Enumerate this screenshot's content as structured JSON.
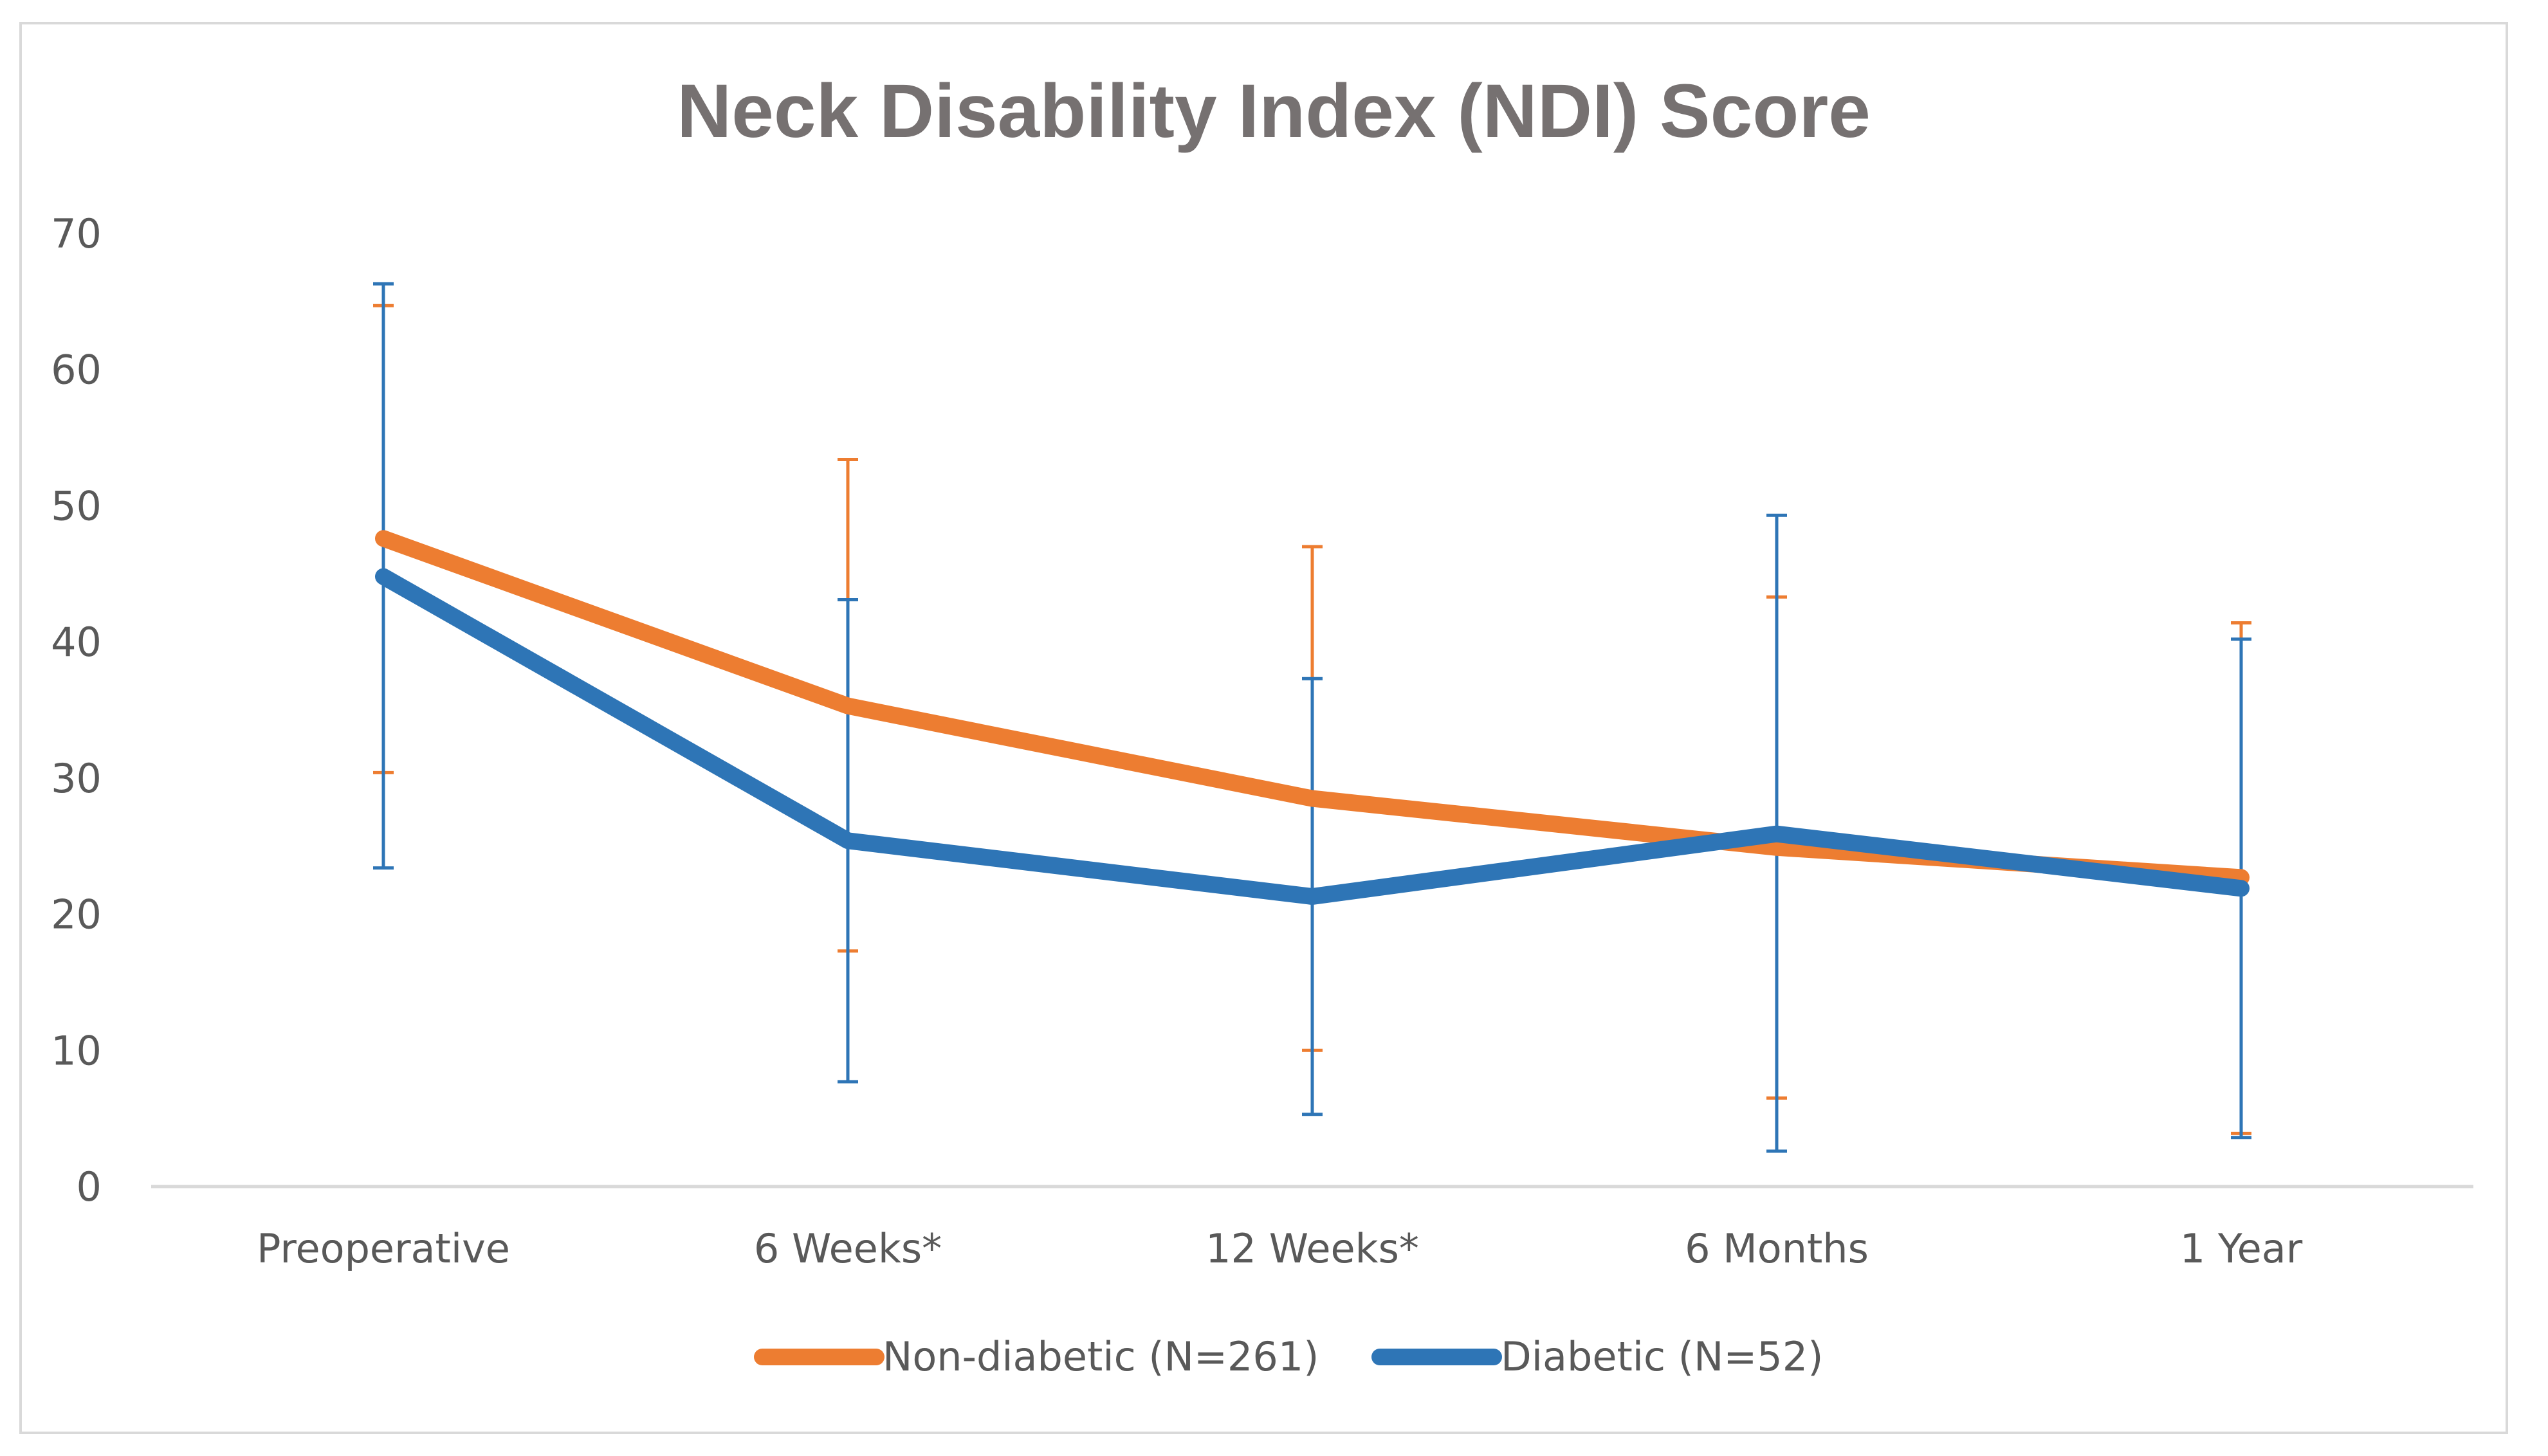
{
  "chart_data": {
    "type": "line",
    "title": "Neck Disability Index (NDI) Score",
    "xlabel": "",
    "ylabel": "",
    "ylim": [
      0,
      70
    ],
    "yticks": [
      0,
      10,
      20,
      30,
      40,
      50,
      60,
      70
    ],
    "grid": false,
    "legend_position": "bottom",
    "categories": [
      "Preoperative",
      "6 Weeks*",
      "12 Weeks*",
      "6 Months",
      "1 Year"
    ],
    "series": [
      {
        "name": "Non-diabetic (N=261)",
        "color": "#ED7D31",
        "values": [
          47.6,
          35.3,
          28.5,
          24.9,
          22.7
        ],
        "error_upper": [
          64.7,
          53.4,
          47.0,
          43.3,
          41.4
        ],
        "error_lower": [
          30.4,
          17.3,
          10.0,
          6.5,
          3.9
        ]
      },
      {
        "name": "Diabetic (N=52)",
        "color": "#2E75B6",
        "values": [
          44.8,
          25.4,
          21.3,
          25.9,
          21.9
        ],
        "error_upper": [
          66.3,
          43.1,
          37.3,
          49.3,
          40.2
        ],
        "error_lower": [
          23.4,
          7.7,
          5.3,
          2.6,
          3.6
        ]
      }
    ]
  }
}
